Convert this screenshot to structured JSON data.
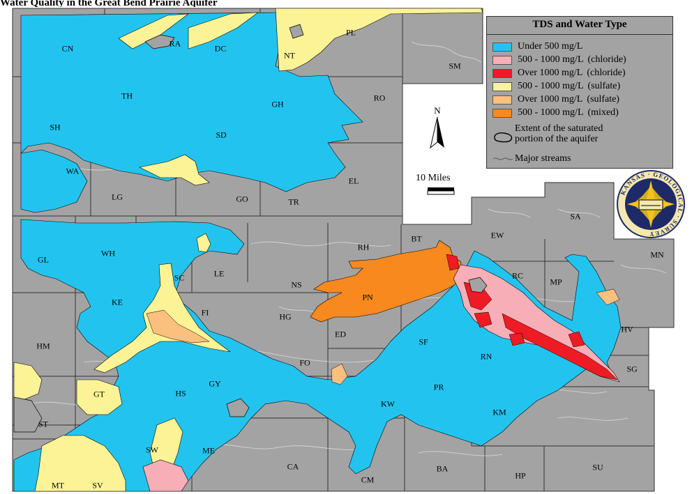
{
  "title": "Water Quality in the Great Bend Prairie Aquifer",
  "legend": {
    "title": "TDS and Water Type",
    "items": [
      {
        "label": "Under  500 mg/L",
        "qualifier": "",
        "color": "#22c4ef"
      },
      {
        "label": "500 - 1000 mg/L",
        "qualifier": "(chloride)",
        "color": "#f7aeb7"
      },
      {
        "label": "Over 1000 mg/L",
        "qualifier": "(chloride)",
        "color": "#ee1b24"
      },
      {
        "label": "500 - 1000 mg/L",
        "qualifier": "(sulfate)",
        "color": "#fbf396"
      },
      {
        "label": "Over 1000 mg/L",
        "qualifier": "(sulfate)",
        "color": "#fbbf7e"
      },
      {
        "label": "500 - 1000 mg/L",
        "qualifier": "(mixed)",
        "color": "#f7891e"
      }
    ],
    "extent_label_line1": "Extent of the saturated",
    "extent_label_line2": "portion of the aquifer",
    "streams_label": "Major streams"
  },
  "north_label": "N",
  "scale_label": "10 Miles",
  "seal_text": "KANSAS · GEOLOGICAL · SURVEY",
  "counties": [
    {
      "code": "CN",
      "lon": 97,
      "lat": 70
    },
    {
      "code": "RA",
      "lon": 251,
      "lat": 63
    },
    {
      "code": "DC",
      "lon": 316,
      "lat": 70
    },
    {
      "code": "NT",
      "lon": 415,
      "lat": 80
    },
    {
      "code": "PL",
      "lon": 503,
      "lat": 47
    },
    {
      "code": "SM",
      "lon": 652,
      "lat": 95
    },
    {
      "code": "TH",
      "lon": 182,
      "lat": 138
    },
    {
      "code": "RO",
      "lon": 544,
      "lat": 141
    },
    {
      "code": "GH",
      "lon": 398,
      "lat": 150
    },
    {
      "code": "SH",
      "lon": 79,
      "lat": 183
    },
    {
      "code": "SD",
      "lon": 317,
      "lat": 194
    },
    {
      "code": "WA",
      "lon": 104,
      "lat": 246
    },
    {
      "code": "EL",
      "lon": 507,
      "lat": 260
    },
    {
      "code": "LG",
      "lon": 168,
      "lat": 283
    },
    {
      "code": "GO",
      "lon": 347,
      "lat": 286
    },
    {
      "code": "TR",
      "lon": 421,
      "lat": 290
    },
    {
      "code": "BT",
      "lon": 597,
      "lat": 343
    },
    {
      "code": "EW",
      "lon": 713,
      "lat": 338
    },
    {
      "code": "SA",
      "lon": 825,
      "lat": 311
    },
    {
      "code": "RH",
      "lon": 521,
      "lat": 355
    },
    {
      "code": "WH",
      "lon": 155,
      "lat": 364
    },
    {
      "code": "GL",
      "lon": 62,
      "lat": 373
    },
    {
      "code": "MN",
      "lon": 942,
      "lat": 366
    },
    {
      "code": "LE",
      "lon": 314,
      "lat": 393
    },
    {
      "code": "SC",
      "lon": 257,
      "lat": 399
    },
    {
      "code": "RC",
      "lon": 742,
      "lat": 396
    },
    {
      "code": "MP",
      "lon": 797,
      "lat": 405
    },
    {
      "code": "NS",
      "lon": 425,
      "lat": 409
    },
    {
      "code": "KE",
      "lon": 168,
      "lat": 434
    },
    {
      "code": "PN",
      "lon": 527,
      "lat": 427
    },
    {
      "code": "FI",
      "lon": 294,
      "lat": 449
    },
    {
      "code": "HG",
      "lon": 409,
      "lat": 455
    },
    {
      "code": "HV",
      "lon": 899,
      "lat": 473
    },
    {
      "code": "ED",
      "lon": 488,
      "lat": 480
    },
    {
      "code": "HM",
      "lon": 62,
      "lat": 497
    },
    {
      "code": "SF",
      "lon": 607,
      "lat": 491
    },
    {
      "code": "FO",
      "lon": 437,
      "lat": 521
    },
    {
      "code": "RN",
      "lon": 697,
      "lat": 512
    },
    {
      "code": "SG",
      "lon": 906,
      "lat": 530
    },
    {
      "code": "GY",
      "lon": 308,
      "lat": 551
    },
    {
      "code": "PR",
      "lon": 629,
      "lat": 556
    },
    {
      "code": "GT",
      "lon": 142,
      "lat": 566
    },
    {
      "code": "HS",
      "lon": 259,
      "lat": 565
    },
    {
      "code": "KW",
      "lon": 556,
      "lat": 580
    },
    {
      "code": "KM",
      "lon": 716,
      "lat": 592
    },
    {
      "code": "ST",
      "lon": 62,
      "lat": 609
    },
    {
      "code": "SW",
      "lon": 218,
      "lat": 646
    },
    {
      "code": "ME",
      "lon": 299,
      "lat": 647
    },
    {
      "code": "CA",
      "lon": 420,
      "lat": 670
    },
    {
      "code": "BA",
      "lon": 634,
      "lat": 673
    },
    {
      "code": "SU",
      "lon": 857,
      "lat": 671
    },
    {
      "code": "HP",
      "lon": 746,
      "lat": 683
    },
    {
      "code": "MT",
      "lon": 83,
      "lat": 697
    },
    {
      "code": "SV",
      "lon": 140,
      "lat": 697
    },
    {
      "code": "CM",
      "lon": 527,
      "lat": 689
    }
  ]
}
